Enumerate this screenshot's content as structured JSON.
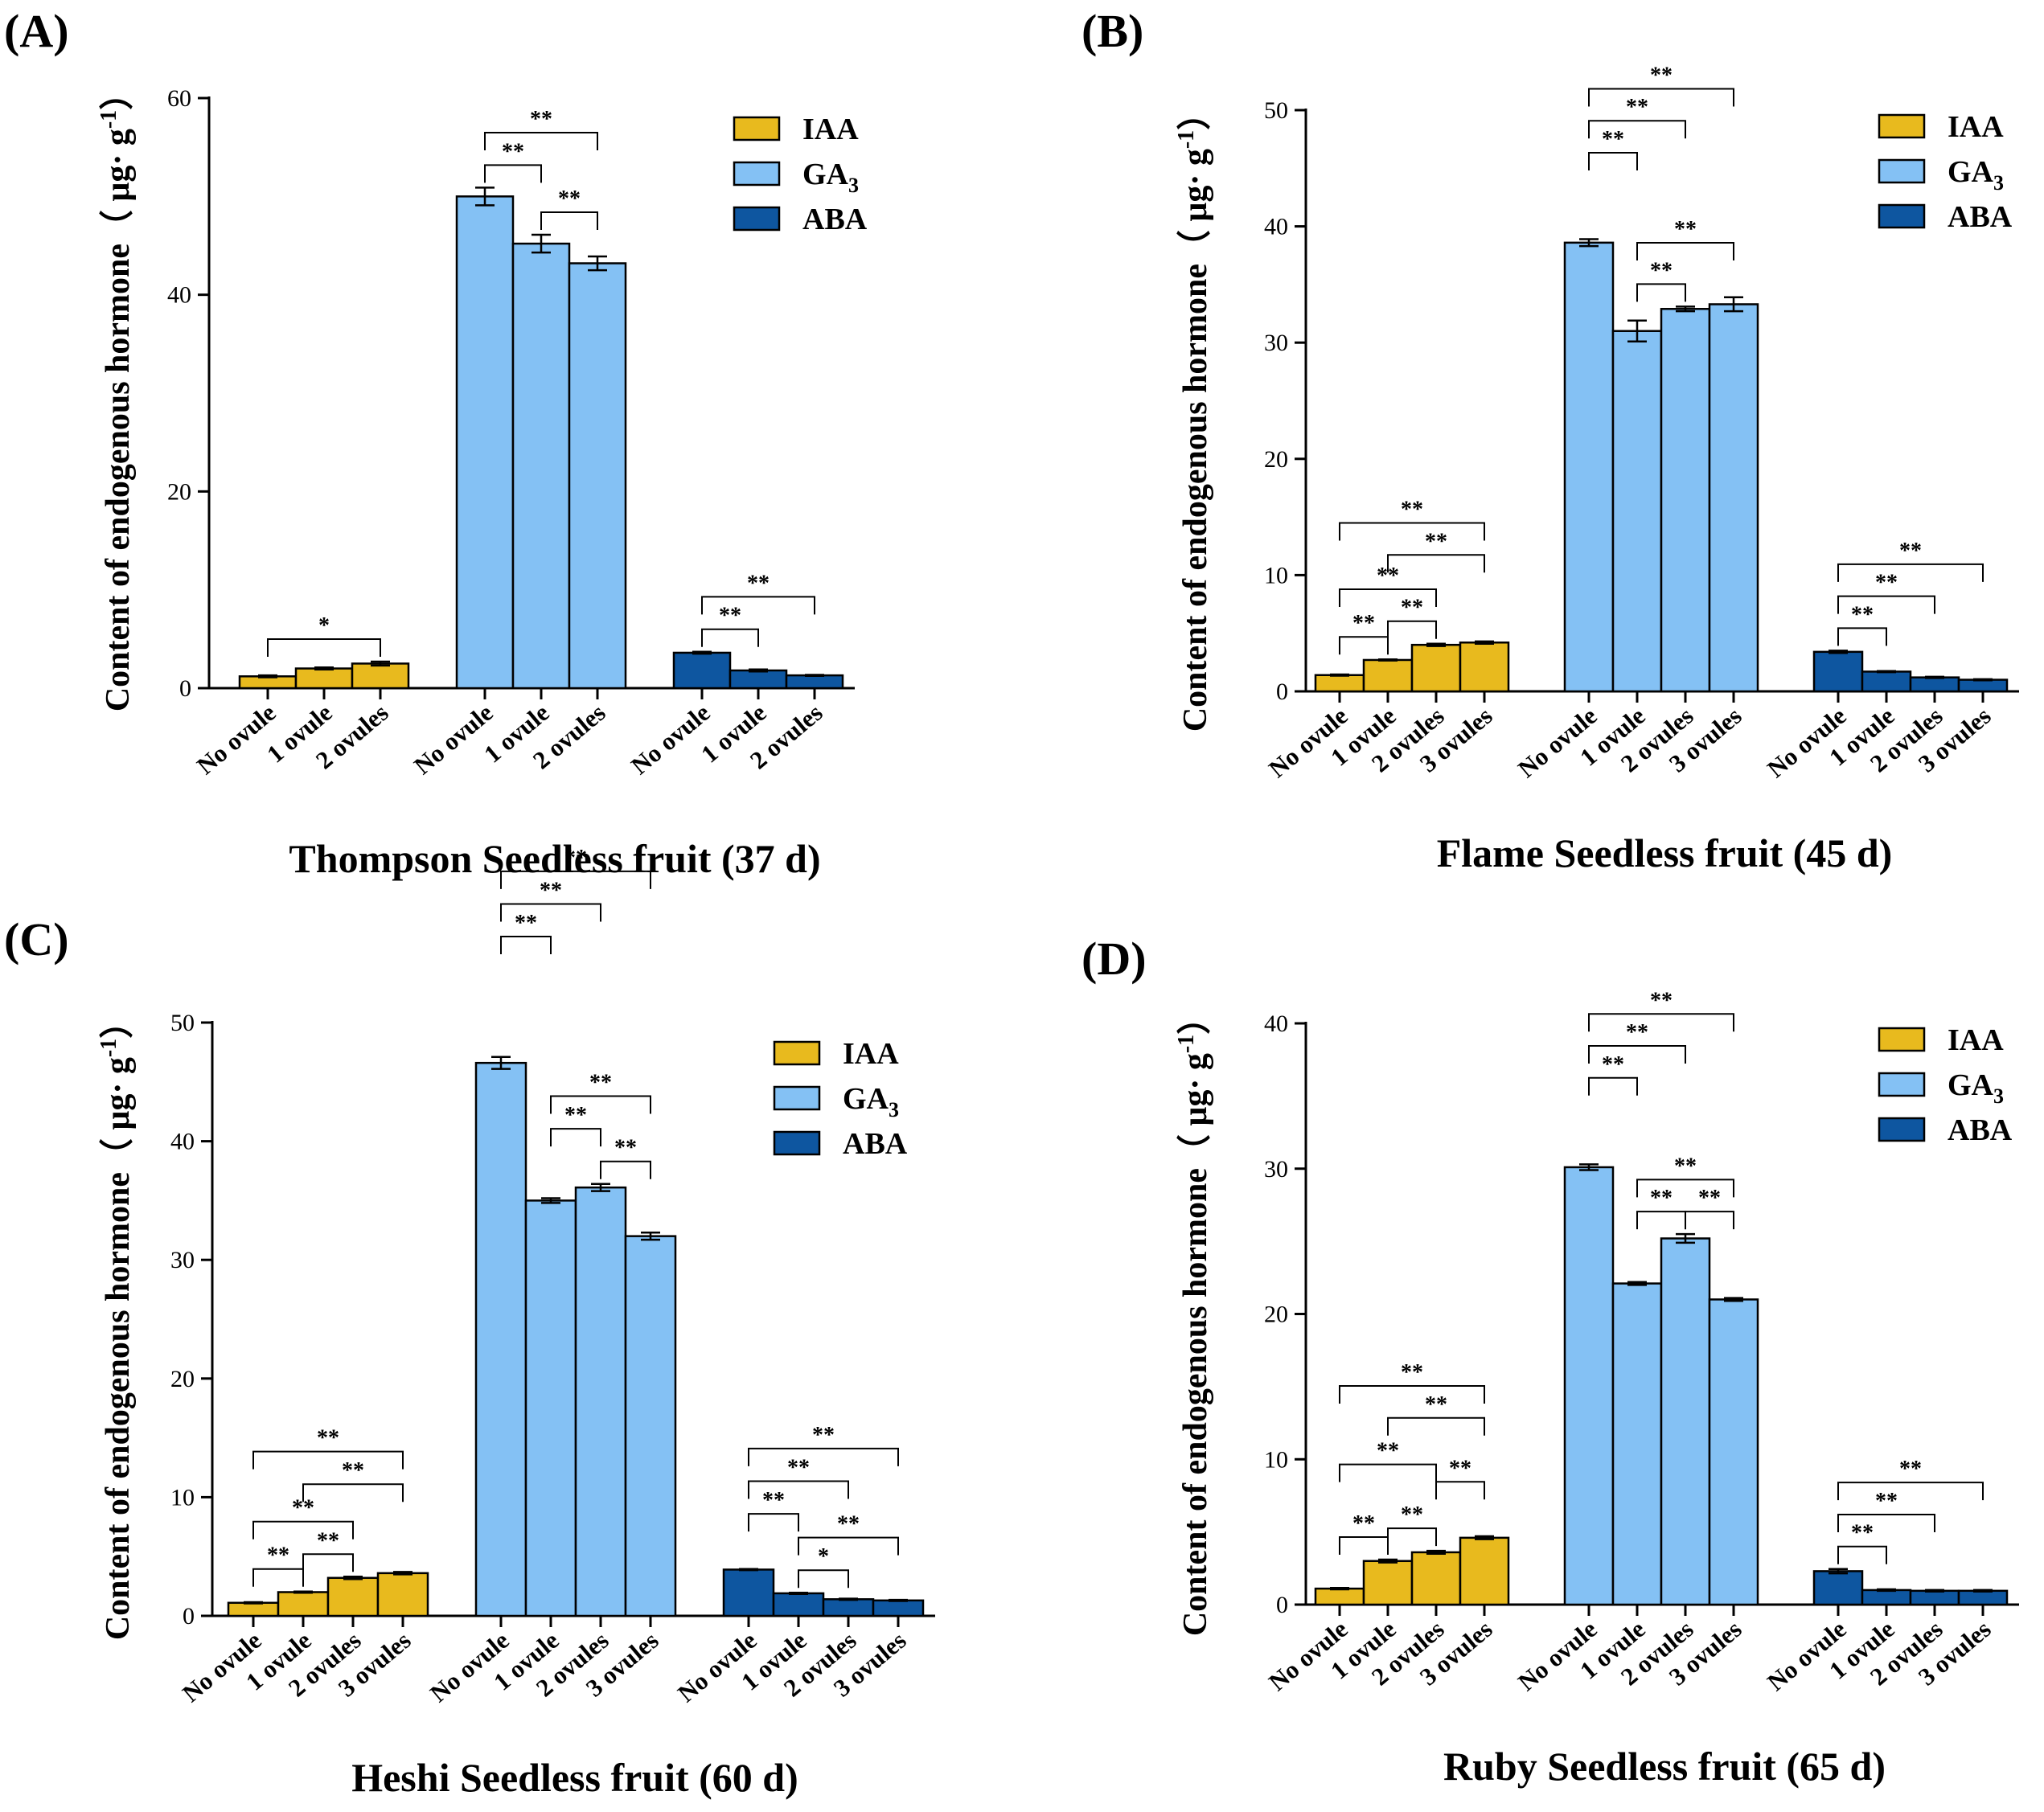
{
  "colors": {
    "IAA": "#E8BA1E",
    "GA3": "#84C1F4",
    "ABA": "#0E56A0",
    "axis": "#000000"
  },
  "chart_data": [
    {
      "type": "bar",
      "panel": "(A)",
      "title": "Thompson Seedless fruit (37 d)",
      "ylabel": "Content of endogenous hormone（ μg· g",
      "ylabel_sup": "-1",
      "ylabel_close": "）",
      "ylim": [
        0,
        60
      ],
      "yticks": [
        0,
        20,
        40,
        60
      ],
      "categories": [
        "No ovule",
        "1 ovule",
        "2 ovules"
      ],
      "legend": [
        {
          "name": "IAA",
          "label": "IAA",
          "sub": ""
        },
        {
          "name": "GA3",
          "label": "GA",
          "sub": "3"
        },
        {
          "name": "ABA",
          "label": "ABA",
          "sub": ""
        }
      ],
      "series": [
        {
          "name": "IAA",
          "values": [
            1.2,
            2.0,
            2.5
          ],
          "errors": [
            0.1,
            0.1,
            0.2
          ]
        },
        {
          "name": "GA3",
          "values": [
            50.0,
            45.2,
            43.2
          ],
          "errors": [
            0.9,
            0.9,
            0.7
          ]
        },
        {
          "name": "ABA",
          "values": [
            3.6,
            1.8,
            1.3
          ],
          "errors": [
            0.1,
            0.1,
            0.05
          ]
        }
      ],
      "significance": [
        {
          "series": 0,
          "from": 0,
          "to": 2,
          "label": "*",
          "level": 1
        },
        {
          "series": 1,
          "from": 0,
          "to": 1,
          "label": "**",
          "level": 1
        },
        {
          "series": 1,
          "from": 1,
          "to": 2,
          "label": "**",
          "level": 1
        },
        {
          "series": 1,
          "from": 0,
          "to": 2,
          "label": "**",
          "level": 2
        },
        {
          "series": 2,
          "from": 0,
          "to": 1,
          "label": "**",
          "level": 1
        },
        {
          "series": 2,
          "from": 0,
          "to": 2,
          "label": "**",
          "level": 2
        }
      ]
    },
    {
      "type": "bar",
      "panel": "(B)",
      "title": "Flame Seedless fruit (45 d)",
      "ylabel": "Content of endogenous hormone（ μg· g",
      "ylabel_sup": "-1",
      "ylabel_close": "）",
      "ylim": [
        0,
        50
      ],
      "yticks": [
        0,
        10,
        20,
        30,
        40,
        50
      ],
      "categories": [
        "No ovule",
        "1 ovule",
        "2 ovules",
        "3 ovules"
      ],
      "legend": [
        {
          "name": "IAA",
          "label": "IAA",
          "sub": ""
        },
        {
          "name": "GA3",
          "label": "GA",
          "sub": "3"
        },
        {
          "name": "ABA",
          "label": "ABA",
          "sub": ""
        }
      ],
      "series": [
        {
          "name": "IAA",
          "values": [
            1.4,
            2.7,
            4.0,
            4.2
          ],
          "errors": [
            0.05,
            0.05,
            0.1,
            0.1
          ]
        },
        {
          "name": "GA3",
          "values": [
            38.6,
            31.0,
            32.9,
            33.3
          ],
          "errors": [
            0.3,
            0.9,
            0.2,
            0.6
          ]
        },
        {
          "name": "ABA",
          "values": [
            3.4,
            1.7,
            1.2,
            1.0
          ],
          "errors": [
            0.1,
            0.05,
            0.05,
            0.05
          ]
        }
      ],
      "significance": [
        {
          "series": 0,
          "from": 0,
          "to": 1,
          "label": "**",
          "level": 1
        },
        {
          "series": 0,
          "from": 1,
          "to": 2,
          "label": "**",
          "level": 1
        },
        {
          "series": 0,
          "from": 0,
          "to": 2,
          "label": "**",
          "level": 2
        },
        {
          "series": 0,
          "from": 1,
          "to": 3,
          "label": "**",
          "level": 3
        },
        {
          "series": 0,
          "from": 0,
          "to": 3,
          "label": "**",
          "level": 4
        },
        {
          "series": 1,
          "from": 1,
          "to": 2,
          "label": "**",
          "level": 1
        },
        {
          "series": 1,
          "from": 1,
          "to": 3,
          "label": "**",
          "level": 2
        },
        {
          "series": 1,
          "from": 0,
          "to": 1,
          "label": "**",
          "level": 3
        },
        {
          "series": 1,
          "from": 0,
          "to": 2,
          "label": "**",
          "level": 4
        },
        {
          "series": 1,
          "from": 0,
          "to": 3,
          "label": "**",
          "level": 5
        },
        {
          "series": 2,
          "from": 0,
          "to": 1,
          "label": "**",
          "level": 1
        },
        {
          "series": 2,
          "from": 0,
          "to": 2,
          "label": "**",
          "level": 2
        },
        {
          "series": 2,
          "from": 0,
          "to": 3,
          "label": "**",
          "level": 3
        }
      ]
    },
    {
      "type": "bar",
      "panel": "(C)",
      "title": "Heshi Seedless fruit (60 d)",
      "ylabel": "Content of endogenous hormone（ μg· g",
      "ylabel_sup": "-1",
      "ylabel_close": "）",
      "ylim": [
        0,
        50
      ],
      "yticks": [
        0,
        10,
        20,
        30,
        40,
        50
      ],
      "categories": [
        "No ovule",
        "1 ovule",
        "2 ovules",
        "3 ovules"
      ],
      "legend": [
        {
          "name": "IAA",
          "label": "IAA",
          "sub": ""
        },
        {
          "name": "GA3",
          "label": "GA",
          "sub": "3"
        },
        {
          "name": "ABA",
          "label": "ABA",
          "sub": ""
        }
      ],
      "series": [
        {
          "name": "IAA",
          "values": [
            1.1,
            2.0,
            3.2,
            3.6
          ],
          "errors": [
            0.05,
            0.05,
            0.1,
            0.1
          ]
        },
        {
          "name": "GA3",
          "values": [
            46.6,
            35.0,
            36.1,
            32.0
          ],
          "errors": [
            0.5,
            0.2,
            0.3,
            0.3
          ]
        },
        {
          "name": "ABA",
          "values": [
            3.9,
            1.9,
            1.4,
            1.3
          ],
          "errors": [
            0.05,
            0.05,
            0.05,
            0.05
          ]
        }
      ],
      "significance": [
        {
          "series": 0,
          "from": 0,
          "to": 1,
          "label": "**",
          "level": 1
        },
        {
          "series": 0,
          "from": 1,
          "to": 2,
          "label": "**",
          "level": 1
        },
        {
          "series": 0,
          "from": 0,
          "to": 2,
          "label": "**",
          "level": 2
        },
        {
          "series": 0,
          "from": 1,
          "to": 3,
          "label": "**",
          "level": 3
        },
        {
          "series": 0,
          "from": 0,
          "to": 3,
          "label": "**",
          "level": 4
        },
        {
          "series": 1,
          "from": 2,
          "to": 3,
          "label": "**",
          "level": 1
        },
        {
          "series": 1,
          "from": 1,
          "to": 2,
          "label": "**",
          "level": 2
        },
        {
          "series": 1,
          "from": 1,
          "to": 3,
          "label": "**",
          "level": 3
        },
        {
          "series": 1,
          "from": 0,
          "to": 1,
          "label": "**",
          "level": 4
        },
        {
          "series": 1,
          "from": 0,
          "to": 2,
          "label": "**",
          "level": 5
        },
        {
          "series": 1,
          "from": 0,
          "to": 3,
          "label": "**",
          "level": 6
        },
        {
          "series": 2,
          "from": 1,
          "to": 2,
          "label": "*",
          "level": 1
        },
        {
          "series": 2,
          "from": 0,
          "to": 1,
          "label": "**",
          "level": 2
        },
        {
          "series": 2,
          "from": 1,
          "to": 3,
          "label": "**",
          "level": 2
        },
        {
          "series": 2,
          "from": 0,
          "to": 2,
          "label": "**",
          "level": 3
        },
        {
          "series": 2,
          "from": 0,
          "to": 3,
          "label": "**",
          "level": 4
        }
      ]
    },
    {
      "type": "bar",
      "panel": "(D)",
      "title": "Ruby Seedless fruit (65 d)",
      "ylabel": "Content of endogenous hormone（ μg· g",
      "ylabel_sup": "-1",
      "ylabel_close": "）",
      "ylim": [
        0,
        40
      ],
      "yticks": [
        0,
        10,
        20,
        30,
        40
      ],
      "categories": [
        "No ovule",
        "1 ovule",
        "2 ovules",
        "3 ovules"
      ],
      "legend": [
        {
          "name": "IAA",
          "label": "IAA",
          "sub": ""
        },
        {
          "name": "GA3",
          "label": "GA",
          "sub": "3"
        },
        {
          "name": "ABA",
          "label": "ABA",
          "sub": ""
        }
      ],
      "series": [
        {
          "name": "IAA",
          "values": [
            1.1,
            3.0,
            3.6,
            4.6
          ],
          "errors": [
            0.05,
            0.1,
            0.1,
            0.1
          ]
        },
        {
          "name": "GA3",
          "values": [
            30.1,
            22.1,
            25.2,
            21.0
          ],
          "errors": [
            0.2,
            0.1,
            0.3,
            0.1
          ]
        },
        {
          "name": "ABA",
          "values": [
            2.3,
            1.0,
            0.95,
            0.95
          ],
          "errors": [
            0.15,
            0.05,
            0.05,
            0.05
          ]
        }
      ],
      "significance": [
        {
          "series": 0,
          "from": 0,
          "to": 1,
          "label": "**",
          "level": 1
        },
        {
          "series": 0,
          "from": 1,
          "to": 2,
          "label": "**",
          "level": 1
        },
        {
          "series": 0,
          "from": 2,
          "to": 3,
          "label": "**",
          "level": 2
        },
        {
          "series": 0,
          "from": 0,
          "to": 2,
          "label": "**",
          "level": 3
        },
        {
          "series": 0,
          "from": 1,
          "to": 3,
          "label": "**",
          "level": 4
        },
        {
          "series": 0,
          "from": 0,
          "to": 3,
          "label": "**",
          "level": 5
        },
        {
          "series": 1,
          "from": 1,
          "to": 2,
          "label": "**",
          "level": 1
        },
        {
          "series": 1,
          "from": 2,
          "to": 3,
          "label": "**",
          "level": 1
        },
        {
          "series": 1,
          "from": 1,
          "to": 3,
          "label": "**",
          "level": 2
        },
        {
          "series": 1,
          "from": 0,
          "to": 1,
          "label": "**",
          "level": 3
        },
        {
          "series": 1,
          "from": 0,
          "to": 2,
          "label": "**",
          "level": 4
        },
        {
          "series": 1,
          "from": 0,
          "to": 3,
          "label": "**",
          "level": 5
        },
        {
          "series": 2,
          "from": 0,
          "to": 1,
          "label": "**",
          "level": 1
        },
        {
          "series": 2,
          "from": 0,
          "to": 2,
          "label": "**",
          "level": 2
        },
        {
          "series": 2,
          "from": 0,
          "to": 3,
          "label": "**",
          "level": 3
        }
      ]
    }
  ]
}
